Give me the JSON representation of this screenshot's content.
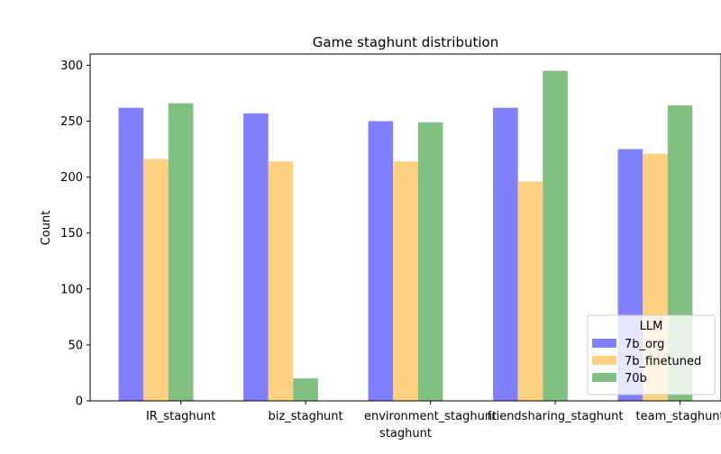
{
  "chart_data": {
    "type": "bar",
    "title": "Game staghunt distribution",
    "xlabel": "staghunt",
    "ylabel": "Count",
    "categories": [
      "IR_staghunt",
      "biz_staghunt",
      "environment_staghunt",
      "friendsharing_staghunt",
      "team_staghunt"
    ],
    "series": [
      {
        "name": "7b_org",
        "color": "#8080ff",
        "values": [
          262,
          257,
          250,
          262,
          225
        ]
      },
      {
        "name": "7b_finetuned",
        "color": "#ffd080",
        "values": [
          216,
          214,
          214,
          196,
          221
        ]
      },
      {
        "name": "70b",
        "color": "#80c080",
        "values": [
          266,
          20,
          249,
          295,
          264
        ]
      }
    ],
    "ylim": [
      0,
      310
    ],
    "yticks": [
      0,
      50,
      100,
      150,
      200,
      250,
      300
    ],
    "grid": false,
    "legend": {
      "title": "LLM",
      "placement": "lower-right"
    }
  }
}
